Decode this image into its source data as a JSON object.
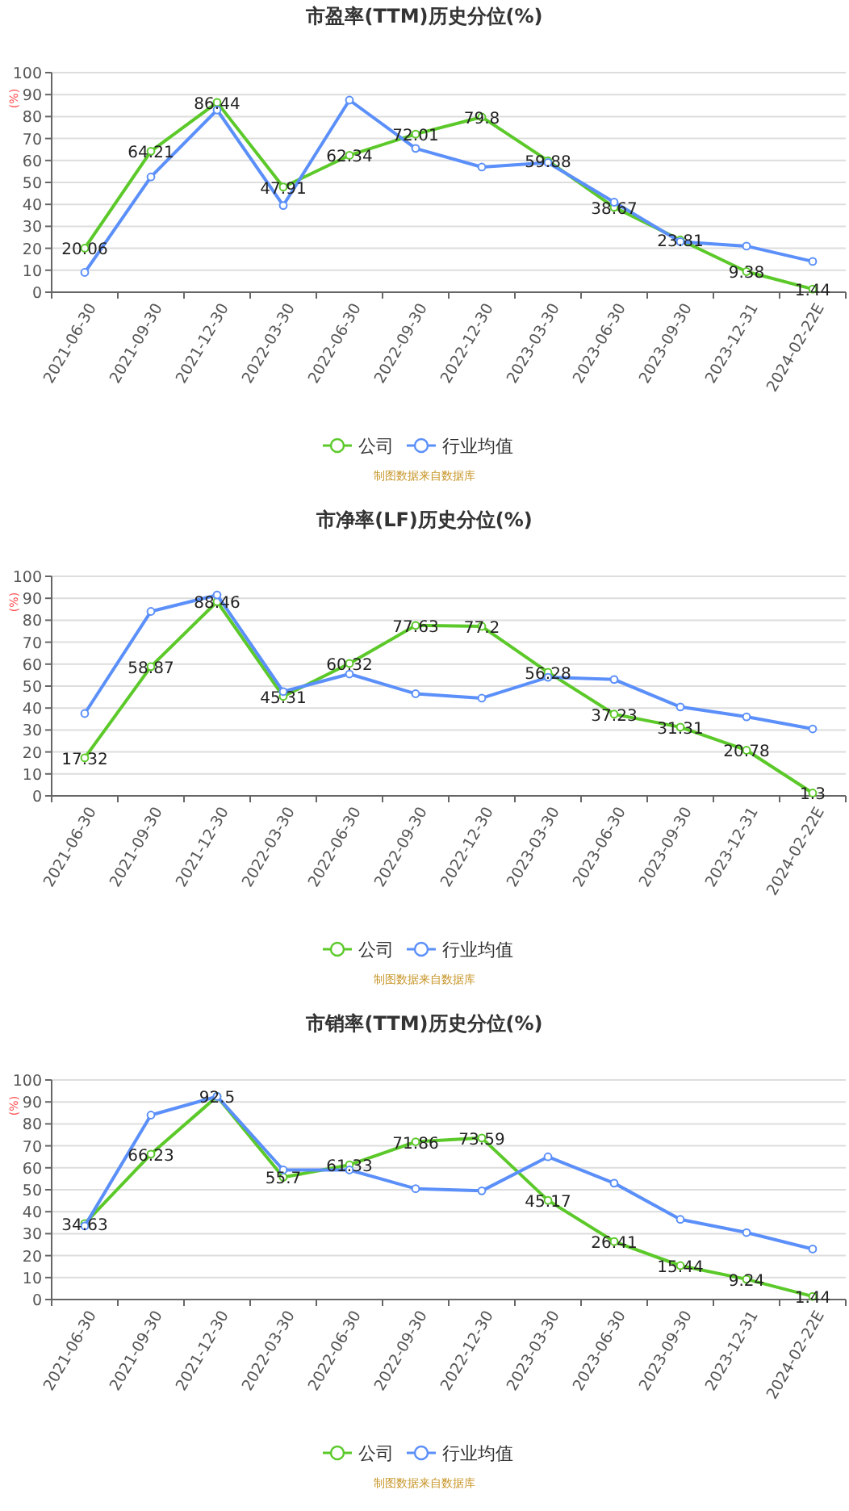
{
  "chart_data": [
    {
      "type": "line",
      "title": "市盈率(TTM)历史分位(%)",
      "ylabel": "(%)",
      "categories": [
        "2021-06-30",
        "2021-09-30",
        "2021-12-30",
        "2022-03-30",
        "2022-06-30",
        "2022-09-30",
        "2022-12-30",
        "2023-03-30",
        "2023-06-30",
        "2023-09-30",
        "2023-12-31",
        "2024-02-22E"
      ],
      "ylim": [
        0,
        100
      ],
      "yticks": [
        0,
        10,
        20,
        30,
        40,
        50,
        60,
        70,
        80,
        90,
        100
      ],
      "grid": "y",
      "legend": "bottom",
      "marker": "circle",
      "line_style": "solid",
      "annotations": [
        "制图数据来自数据库"
      ],
      "series": [
        {
          "name": "公司",
          "color": "#5cc92a",
          "values": [
            20.06,
            64.21,
            86.44,
            47.91,
            62.34,
            72.01,
            79.8,
            59.88,
            38.67,
            23.81,
            9.38,
            1.44
          ],
          "value_labels": [
            "20.06",
            "64.21",
            "86.44",
            "47.91",
            "62.34",
            "72.01",
            "79.8",
            "59.88",
            "38.67",
            "23.81",
            "9.38",
            "1.44"
          ]
        },
        {
          "name": "行业均值",
          "color": "#5b8ff9",
          "values": [
            9,
            52.5,
            83,
            39.5,
            87.5,
            65.5,
            57,
            59,
            41,
            23,
            21,
            14
          ]
        }
      ]
    },
    {
      "type": "line",
      "title": "市净率(LF)历史分位(%)",
      "ylabel": "(%)",
      "categories": [
        "2021-06-30",
        "2021-09-30",
        "2021-12-30",
        "2022-03-30",
        "2022-06-30",
        "2022-09-30",
        "2022-12-30",
        "2023-03-30",
        "2023-06-30",
        "2023-09-30",
        "2023-12-31",
        "2024-02-22E"
      ],
      "ylim": [
        0,
        100
      ],
      "yticks": [
        0,
        10,
        20,
        30,
        40,
        50,
        60,
        70,
        80,
        90,
        100
      ],
      "grid": "y",
      "legend": "bottom",
      "marker": "circle",
      "line_style": "solid",
      "annotations": [
        "制图数据来自数据库"
      ],
      "series": [
        {
          "name": "公司",
          "color": "#5cc92a",
          "values": [
            17.32,
            58.87,
            88.46,
            45.31,
            60.32,
            77.63,
            77.2,
            56.28,
            37.23,
            31.31,
            20.78,
            1.3
          ],
          "value_labels": [
            "17.32",
            "58.87",
            "88.46",
            "45.31",
            "60.32",
            "77.63",
            "77.2",
            "56.28",
            "37.23",
            "31.31",
            "20.78",
            "1.3"
          ]
        },
        {
          "name": "行业均值",
          "color": "#5b8ff9",
          "values": [
            37.5,
            84,
            91.5,
            47.5,
            55.5,
            46.5,
            44.5,
            54,
            53,
            40.5,
            36,
            30.5
          ]
        }
      ]
    },
    {
      "type": "line",
      "title": "市销率(TTM)历史分位(%)",
      "ylabel": "(%)",
      "categories": [
        "2021-06-30",
        "2021-09-30",
        "2021-12-30",
        "2022-03-30",
        "2022-06-30",
        "2022-09-30",
        "2022-12-30",
        "2023-03-30",
        "2023-06-30",
        "2023-09-30",
        "2023-12-31",
        "2024-02-22E"
      ],
      "ylim": [
        0,
        100
      ],
      "yticks": [
        0,
        10,
        20,
        30,
        40,
        50,
        60,
        70,
        80,
        90,
        100
      ],
      "grid": "y",
      "legend": "bottom",
      "marker": "circle",
      "line_style": "solid",
      "annotations": [
        "制图数据来自数据库"
      ],
      "series": [
        {
          "name": "公司",
          "color": "#5cc92a",
          "values": [
            34.63,
            66.23,
            92.5,
            55.7,
            61.33,
            71.86,
            73.59,
            45.17,
            26.41,
            15.44,
            9.24,
            1.44
          ],
          "value_labels": [
            "34.63",
            "66.23",
            "92.5",
            "55.7",
            "61.33",
            "71.86",
            "73.59",
            "45.17",
            "26.41",
            "15.44",
            "9.24",
            "1.44"
          ]
        },
        {
          "name": "行业均值",
          "color": "#5b8ff9",
          "values": [
            33.5,
            84,
            92.5,
            59,
            59,
            50.5,
            49.5,
            65,
            53,
            36.5,
            30.5,
            23
          ]
        }
      ]
    }
  ]
}
